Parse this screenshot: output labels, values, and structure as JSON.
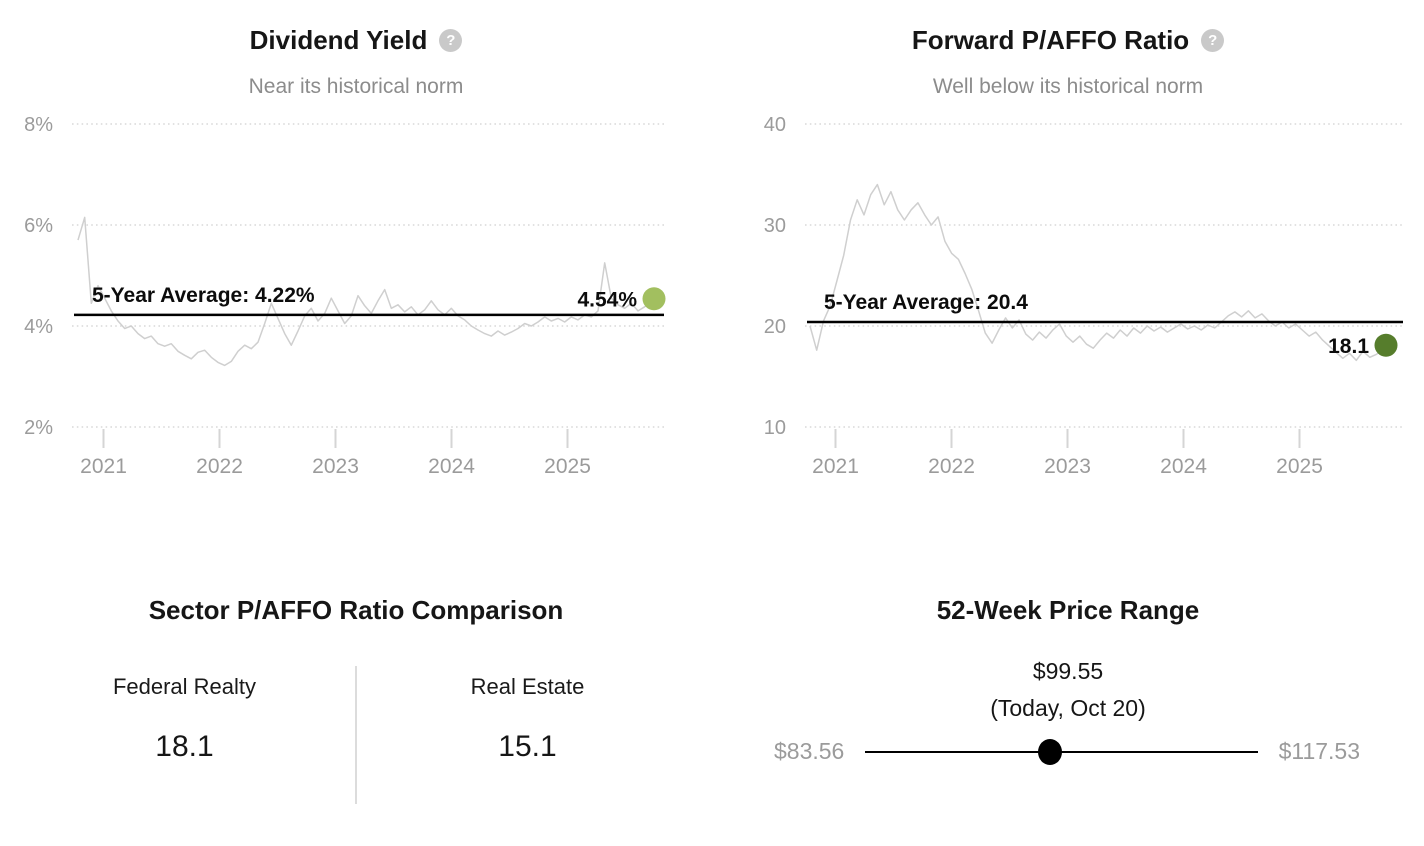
{
  "chart_data": [
    {
      "type": "line",
      "title": "Dividend Yield",
      "subtitle": "Near its historical norm",
      "help_icon_glyph": "?",
      "x_range": [
        2020.78,
        2025.78
      ],
      "x_ticks": [
        2021,
        2022,
        2023,
        2024,
        2025
      ],
      "y_ticks": [
        {
          "label": "8%",
          "value": 8
        },
        {
          "label": "6%",
          "value": 6
        },
        {
          "label": "4%",
          "value": 4
        },
        {
          "label": "2%",
          "value": 2
        }
      ],
      "average": {
        "value": 4.22,
        "label": "5-Year Average: 4.22%"
      },
      "current": {
        "value": 4.54,
        "label": "4.54%",
        "dot_color": "#a2bf5f"
      },
      "series_color": "#cfcfcf",
      "values": [
        5.7,
        6.15,
        4.45,
        4.8,
        4.55,
        4.3,
        4.1,
        3.95,
        4.0,
        3.85,
        3.75,
        3.8,
        3.65,
        3.6,
        3.65,
        3.5,
        3.42,
        3.35,
        3.48,
        3.52,
        3.38,
        3.28,
        3.22,
        3.3,
        3.5,
        3.62,
        3.55,
        3.68,
        4.05,
        4.45,
        4.15,
        3.85,
        3.62,
        3.9,
        4.2,
        4.35,
        4.1,
        4.25,
        4.55,
        4.3,
        4.05,
        4.2,
        4.6,
        4.4,
        4.25,
        4.5,
        4.72,
        4.35,
        4.42,
        4.28,
        4.38,
        4.22,
        4.32,
        4.5,
        4.32,
        4.22,
        4.35,
        4.2,
        4.12,
        4.0,
        3.92,
        3.85,
        3.8,
        3.9,
        3.82,
        3.88,
        3.95,
        4.05,
        4.0,
        4.08,
        4.18,
        4.1,
        4.15,
        4.08,
        4.18,
        4.12,
        4.22,
        4.18,
        4.3,
        5.25,
        4.55,
        4.42,
        4.35,
        4.45,
        4.3,
        4.38,
        4.48,
        4.54
      ]
    },
    {
      "type": "line",
      "title": "Forward P/AFFO Ratio",
      "subtitle": "Well below its historical norm",
      "help_icon_glyph": "?",
      "x_range": [
        2020.78,
        2025.78
      ],
      "x_ticks": [
        2021,
        2022,
        2023,
        2024,
        2025
      ],
      "y_ticks": [
        {
          "label": "40",
          "value": 40
        },
        {
          "label": "30",
          "value": 30
        },
        {
          "label": "20",
          "value": 20
        },
        {
          "label": "10",
          "value": 10
        }
      ],
      "average": {
        "value": 20.4,
        "label": "5-Year Average: 20.4"
      },
      "current": {
        "value": 18.1,
        "label": "18.1",
        "dot_color": "#567d2c"
      },
      "series_color": "#cfcfcf",
      "values": [
        20.0,
        17.6,
        20.5,
        22.0,
        24.5,
        27.0,
        30.5,
        32.5,
        31.0,
        33.0,
        34.0,
        32.0,
        33.3,
        31.5,
        30.5,
        31.5,
        32.2,
        31.0,
        30.0,
        30.8,
        28.4,
        27.2,
        26.6,
        25.2,
        23.6,
        21.5,
        19.3,
        18.3,
        19.6,
        20.8,
        19.8,
        20.6,
        19.2,
        18.6,
        19.4,
        18.8,
        19.6,
        20.2,
        19.0,
        18.4,
        19.0,
        18.2,
        17.8,
        18.6,
        19.3,
        18.8,
        19.6,
        19.0,
        19.8,
        19.3,
        20.0,
        19.5,
        19.9,
        19.4,
        19.8,
        20.2,
        19.7,
        20.0,
        19.6,
        20.1,
        19.8,
        20.4,
        21.0,
        21.4,
        20.9,
        21.5,
        20.8,
        21.2,
        20.5,
        20.0,
        20.4,
        19.8,
        20.2,
        19.6,
        19.0,
        19.4,
        18.6,
        18.0,
        17.4,
        16.8,
        17.3,
        16.6,
        17.5,
        16.9,
        17.2,
        17.7,
        18.1
      ]
    }
  ],
  "sector_comparison": {
    "title": "Sector P/AFFO Ratio Comparison",
    "columns": [
      {
        "label": "Federal Realty",
        "value": "18.1"
      },
      {
        "label": "Real Estate",
        "value": "15.1"
      }
    ]
  },
  "price_range": {
    "title": "52-Week Price Range",
    "current_price": "$99.55",
    "current_note": "(Today, Oct 20)",
    "low": "$83.56",
    "high": "$117.53",
    "position_pct": 47
  },
  "colors": {
    "grid_line": "#d9d9d9",
    "axis_text": "#9b9b9b",
    "average_line": "#000000"
  }
}
